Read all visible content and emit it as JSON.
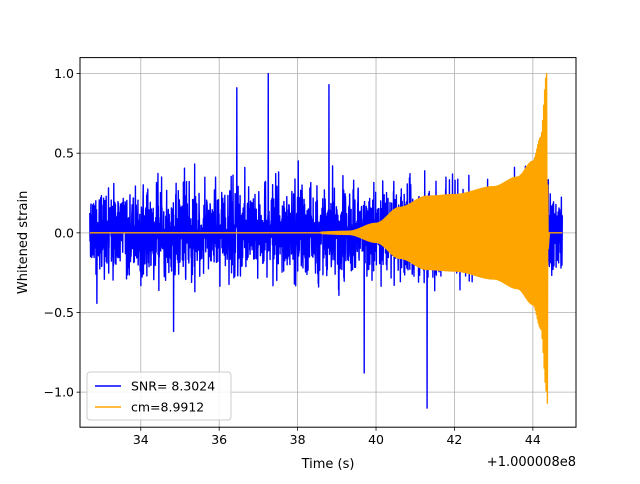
{
  "chart_data": {
    "type": "line",
    "title": "",
    "xlabel": "Time (s)",
    "ylabel": "Whitened strain",
    "x_offset_label": "+1.000008e8",
    "xlim": [
      32.45,
      45.1
    ],
    "ylim": [
      -1.22,
      1.1
    ],
    "x_ticks": [
      34,
      36,
      38,
      40,
      42,
      44
    ],
    "y_ticks": [
      -1.0,
      -0.5,
      0.0,
      0.5,
      1.0
    ],
    "x_tick_labels": [
      "34",
      "36",
      "38",
      "40",
      "42",
      "44"
    ],
    "y_tick_labels": [
      "−1.0",
      "−0.5",
      "0.0",
      "0.5",
      "1.0"
    ],
    "grid": true,
    "legend_position": "lower-left",
    "colors": {
      "data": "#0000ff",
      "template": "#ffa500"
    },
    "series": [
      {
        "name": "SNR= 8.3024",
        "color": "#0000ff",
        "x_range": [
          32.7,
          44.75
        ],
        "description_kind": "noise",
        "typical_amplitude": 0.5,
        "peaks": [
          {
            "x": 37.25,
            "y": 1.0
          },
          {
            "x": 41.3,
            "y": -1.1
          },
          {
            "x": 38.8,
            "y": 0.93
          },
          {
            "x": 36.45,
            "y": 0.91
          },
          {
            "x": 39.7,
            "y": -0.88
          }
        ]
      },
      {
        "name": "cm=8.9912",
        "color": "#ffa500",
        "x_range": [
          32.7,
          44.75
        ],
        "description_kind": "chirp",
        "envelope": [
          {
            "x": 32.7,
            "y": 0.0
          },
          {
            "x": 38.0,
            "y": 0.0
          },
          {
            "x": 39.3,
            "y": 0.01
          },
          {
            "x": 40.0,
            "y": 0.06
          },
          {
            "x": 40.6,
            "y": 0.16
          },
          {
            "x": 41.3,
            "y": 0.23
          },
          {
            "x": 42.0,
            "y": 0.24
          },
          {
            "x": 43.0,
            "y": 0.29
          },
          {
            "x": 43.6,
            "y": 0.35
          },
          {
            "x": 44.0,
            "y": 0.45
          },
          {
            "x": 44.2,
            "y": 0.6
          },
          {
            "x": 44.35,
            "y": 1.0
          }
        ],
        "peak_positive": {
          "x": 44.37,
          "y": 1.0
        },
        "peak_negative": {
          "x": 44.37,
          "y": -1.07
        },
        "end_of_signal": 44.42
      }
    ]
  }
}
